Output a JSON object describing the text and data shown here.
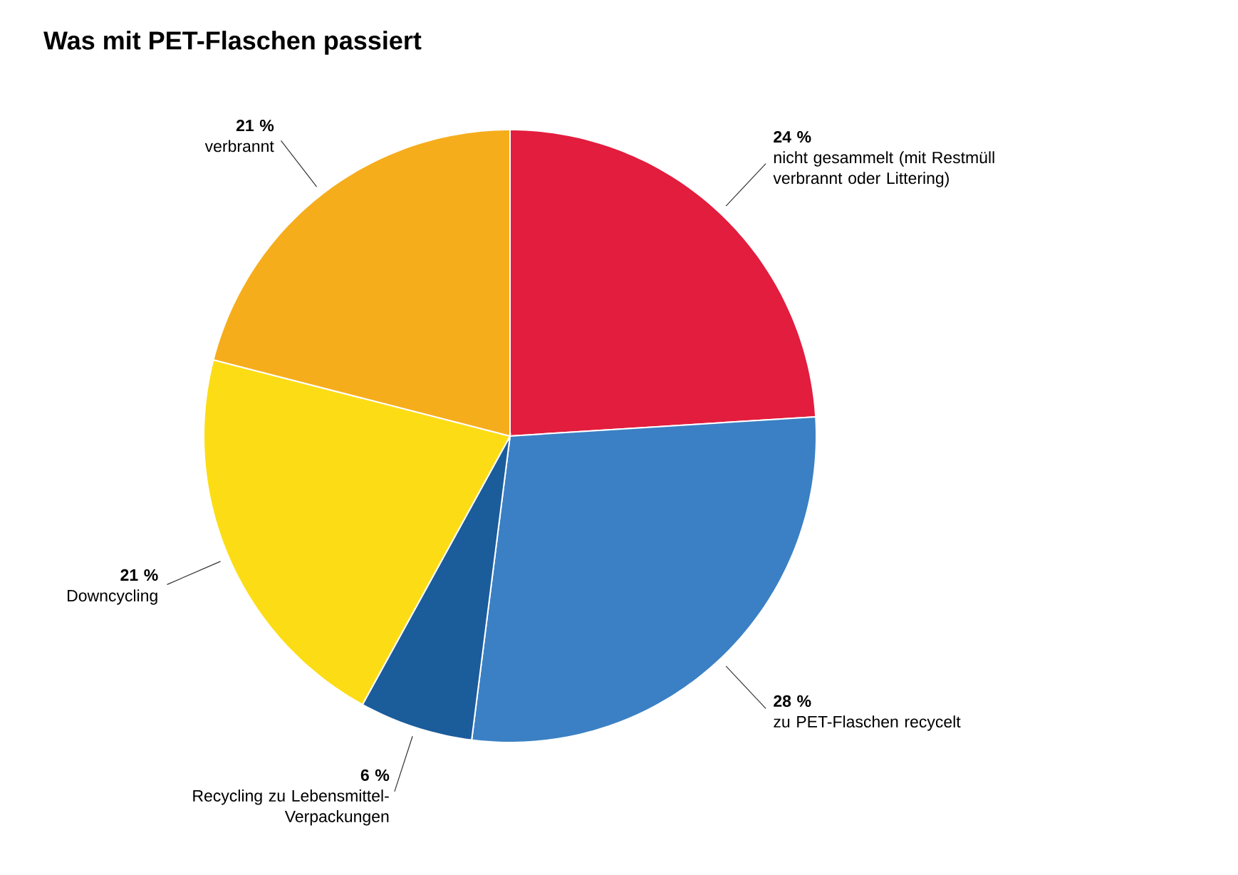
{
  "chart_data": {
    "type": "pie",
    "title": "Was mit PET-Flaschen passiert",
    "categories": [
      "nicht gesammelt (mit Restmüll verbrannt oder Littering)",
      "zu PET-Flaschen recycelt",
      "Recycling zu Lebensmittel-Verpackungen",
      "Downcycling",
      "verbrannt"
    ],
    "values": [
      24,
      28,
      6,
      21,
      21
    ],
    "colors": [
      "#e21d3e",
      "#3b80c4",
      "#1b5c9b",
      "#fcdd15",
      "#f6ad1c"
    ],
    "value_labels": [
      "24 %",
      "28 %",
      "6 %",
      "21 %",
      "21 %"
    ]
  }
}
